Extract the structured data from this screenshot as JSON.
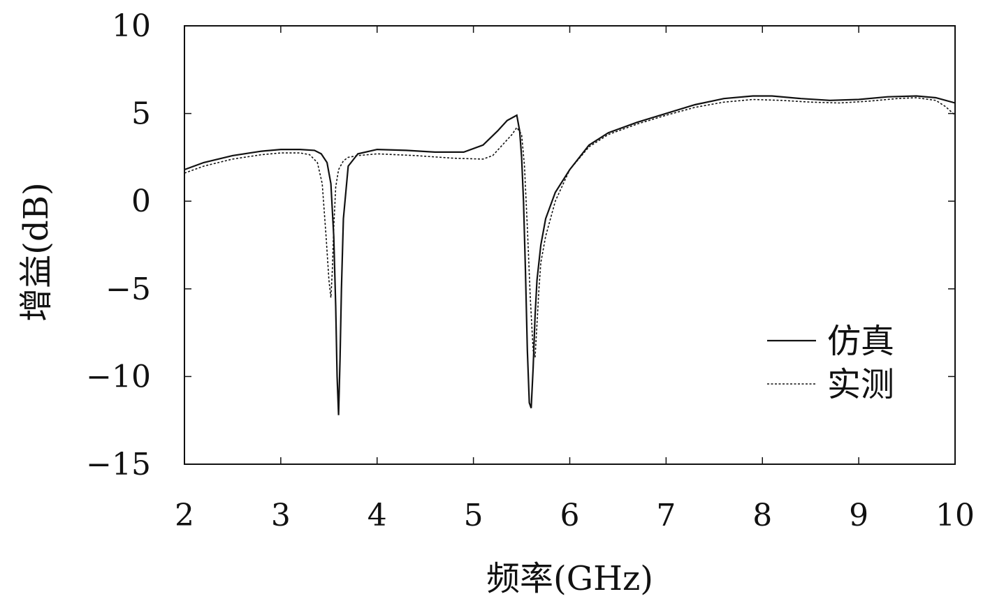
{
  "chart_data": {
    "type": "line",
    "xlabel": "频率(GHz)",
    "ylabel": "增益(dB)",
    "xlim": [
      2,
      10
    ],
    "ylim": [
      -15,
      10
    ],
    "xticks": [
      2,
      3,
      4,
      5,
      6,
      7,
      8,
      9,
      10
    ],
    "yticks": [
      10,
      5,
      0,
      -5,
      -10,
      -15
    ],
    "xtick_labels": [
      "2",
      "3",
      "4",
      "5",
      "6",
      "7",
      "8",
      "9",
      "10"
    ],
    "ytick_labels": [
      "10",
      "5",
      "0",
      "−5",
      "−10",
      "−15"
    ],
    "legend_position": "lower-right",
    "grid": false,
    "series": [
      {
        "name": "仿真",
        "style": "solid",
        "x": [
          2.0,
          2.2,
          2.5,
          2.8,
          3.0,
          3.2,
          3.35,
          3.42,
          3.48,
          3.52,
          3.55,
          3.57,
          3.585,
          3.6,
          3.615,
          3.63,
          3.65,
          3.7,
          3.8,
          4.0,
          4.3,
          4.6,
          4.9,
          5.1,
          5.25,
          5.35,
          5.45,
          5.48,
          5.5,
          5.52,
          5.54,
          5.56,
          5.58,
          5.6,
          5.62,
          5.64,
          5.66,
          5.7,
          5.75,
          5.85,
          6.0,
          6.2,
          6.4,
          6.7,
          7.0,
          7.3,
          7.6,
          7.9,
          8.1,
          8.4,
          8.7,
          9.0,
          9.3,
          9.6,
          9.8,
          10.0
        ],
        "y": [
          1.8,
          2.2,
          2.6,
          2.85,
          2.95,
          2.95,
          2.9,
          2.7,
          2.2,
          1.0,
          -2.0,
          -6.0,
          -10.0,
          -12.2,
          -9.0,
          -5.0,
          -1.0,
          2.0,
          2.7,
          2.95,
          2.9,
          2.8,
          2.8,
          3.2,
          4.0,
          4.6,
          4.9,
          4.0,
          2.5,
          0.0,
          -4.0,
          -8.5,
          -11.5,
          -11.8,
          -9.5,
          -6.5,
          -4.5,
          -2.5,
          -1.0,
          0.5,
          1.8,
          3.2,
          3.9,
          4.5,
          5.0,
          5.5,
          5.85,
          6.0,
          6.0,
          5.85,
          5.75,
          5.8,
          5.95,
          6.0,
          5.9,
          5.6
        ]
      },
      {
        "name": "实测",
        "style": "dashed",
        "x": [
          2.0,
          2.2,
          2.5,
          2.8,
          3.0,
          3.2,
          3.3,
          3.38,
          3.43,
          3.47,
          3.5,
          3.52,
          3.535,
          3.55,
          3.57,
          3.6,
          3.65,
          3.7,
          3.8,
          4.0,
          4.4,
          4.8,
          5.1,
          5.2,
          5.3,
          5.4,
          5.45,
          5.5,
          5.53,
          5.56,
          5.59,
          5.62,
          5.64,
          5.66,
          5.68,
          5.7,
          5.75,
          5.85,
          6.0,
          6.2,
          6.4,
          6.7,
          7.0,
          7.3,
          7.6,
          7.9,
          8.2,
          8.5,
          8.8,
          9.1,
          9.4,
          9.6,
          9.8,
          9.9,
          10.0
        ],
        "y": [
          1.6,
          2.0,
          2.4,
          2.65,
          2.75,
          2.75,
          2.65,
          2.2,
          1.0,
          -2.0,
          -4.5,
          -5.5,
          -4.0,
          -1.5,
          0.8,
          1.8,
          2.3,
          2.5,
          2.6,
          2.7,
          2.6,
          2.45,
          2.4,
          2.6,
          3.2,
          3.8,
          4.2,
          3.8,
          2.0,
          -1.5,
          -5.5,
          -8.5,
          -8.9,
          -7.0,
          -5.0,
          -3.5,
          -2.0,
          0.0,
          1.8,
          3.1,
          3.8,
          4.4,
          4.9,
          5.35,
          5.65,
          5.8,
          5.75,
          5.65,
          5.6,
          5.7,
          5.85,
          5.9,
          5.75,
          5.4,
          4.9
        ]
      }
    ]
  }
}
